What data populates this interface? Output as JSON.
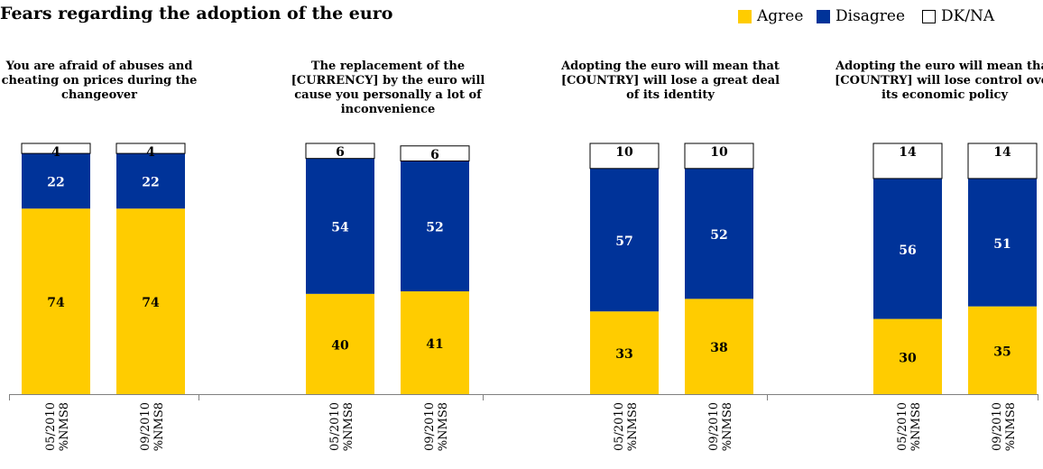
{
  "chart_data": {
    "type": "bar",
    "stacked": true,
    "normalized": true,
    "title": "Fears regarding the adoption of the euro",
    "legend_position": "top-right",
    "grid": false,
    "ylim": [
      0,
      100
    ],
    "legend": [
      {
        "name": "Agree",
        "color": "#FFCC00"
      },
      {
        "name": "Disagree",
        "color": "#003399"
      },
      {
        "name": "DK/NA",
        "color": "#FFFFFF"
      }
    ],
    "groups": [
      {
        "title": "You are afraid of abuses and cheating on prices during the changeover",
        "categories": [
          "05/2010 %NMS8",
          "09/2010 %NMS8"
        ],
        "series": [
          {
            "name": "Agree",
            "values": [
              74,
              74
            ]
          },
          {
            "name": "Disagree",
            "values": [
              22,
              22
            ]
          },
          {
            "name": "DK/NA",
            "values": [
              4,
              4
            ]
          }
        ]
      },
      {
        "title": "The replacement of the [CURRENCY] by the euro will cause you personally a lot of inconvenience",
        "categories": [
          "05/2010 %NMS8",
          "09/2010 %NMS8"
        ],
        "series": [
          {
            "name": "Agree",
            "values": [
              40,
              41
            ]
          },
          {
            "name": "Disagree",
            "values": [
              54,
              52
            ]
          },
          {
            "name": "DK/NA",
            "values": [
              6,
              6
            ]
          }
        ]
      },
      {
        "title": "Adopting the euro will mean that [COUNTRY] will lose a great deal of its identity",
        "categories": [
          "05/2010 %NMS8",
          "09/2010 %NMS8"
        ],
        "series": [
          {
            "name": "Agree",
            "values": [
              33,
              38
            ]
          },
          {
            "name": "Disagree",
            "values": [
              57,
              52
            ]
          },
          {
            "name": "DK/NA",
            "values": [
              10,
              10
            ]
          }
        ]
      },
      {
        "title": "Adopting the euro will mean that [COUNTRY] will lose control over its economic policy",
        "categories": [
          "05/2010 %NMS8",
          "09/2010 %NMS8"
        ],
        "series": [
          {
            "name": "Agree",
            "values": [
              30,
              35
            ]
          },
          {
            "name": "Disagree",
            "values": [
              56,
              51
            ]
          },
          {
            "name": "DK/NA",
            "values": [
              14,
              14
            ]
          }
        ]
      }
    ]
  }
}
